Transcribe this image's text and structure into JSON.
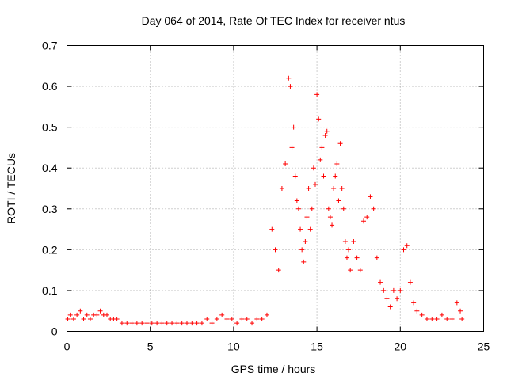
{
  "chart_data": {
    "type": "scatter",
    "title": "Day 064 of 2014, Rate Of TEC Index for receiver ntus",
    "xlabel": "GPS time / hours",
    "ylabel": "ROTI / TECUs",
    "xlim": [
      0,
      25
    ],
    "ylim": [
      0,
      0.7
    ],
    "xticks": [
      0,
      5,
      10,
      15,
      20,
      25
    ],
    "xtick_labels": [
      "0",
      "5",
      "10",
      "15",
      "20",
      "25"
    ],
    "yticks": [
      0,
      0.1,
      0.2,
      0.3,
      0.4,
      0.5,
      0.6,
      0.7
    ],
    "ytick_labels": [
      "0",
      "0.1",
      "0.2",
      "0.3",
      "0.4",
      "0.5",
      "0.6",
      "0.7"
    ],
    "grid": true,
    "marker": "+",
    "color": "#ff0000",
    "series": [
      {
        "name": "ROTI",
        "x": [
          0.05,
          0.2,
          0.4,
          0.6,
          0.8,
          1.0,
          1.2,
          1.4,
          1.6,
          1.8,
          2.0,
          2.2,
          2.4,
          2.6,
          2.8,
          3.0,
          3.3,
          3.6,
          3.9,
          4.2,
          4.5,
          4.8,
          5.1,
          5.4,
          5.7,
          6.0,
          6.3,
          6.6,
          6.9,
          7.2,
          7.5,
          7.8,
          8.1,
          8.4,
          8.7,
          9.0,
          9.3,
          9.6,
          9.9,
          10.2,
          10.5,
          10.8,
          11.1,
          11.4,
          11.7,
          12.0,
          12.3,
          12.5,
          12.7,
          12.9,
          13.1,
          13.3,
          13.4,
          13.5,
          13.6,
          13.7,
          13.8,
          13.9,
          14.0,
          14.1,
          14.2,
          14.3,
          14.4,
          14.5,
          14.6,
          14.7,
          14.8,
          14.9,
          15.0,
          15.1,
          15.2,
          15.3,
          15.4,
          15.5,
          15.6,
          15.7,
          15.8,
          15.9,
          16.0,
          16.1,
          16.2,
          16.3,
          16.4,
          16.5,
          16.6,
          16.7,
          16.8,
          16.9,
          17.0,
          17.2,
          17.4,
          17.6,
          17.8,
          18.0,
          18.2,
          18.4,
          18.6,
          18.8,
          19.0,
          19.2,
          19.4,
          19.6,
          19.8,
          20.0,
          20.2,
          20.4,
          20.6,
          20.8,
          21.0,
          21.3,
          21.6,
          21.9,
          22.2,
          22.5,
          22.8,
          23.1,
          23.4,
          23.6,
          23.7
        ],
        "y": [
          0.03,
          0.04,
          0.03,
          0.04,
          0.05,
          0.03,
          0.04,
          0.03,
          0.04,
          0.04,
          0.05,
          0.04,
          0.04,
          0.03,
          0.03,
          0.03,
          0.02,
          0.02,
          0.02,
          0.02,
          0.02,
          0.02,
          0.02,
          0.02,
          0.02,
          0.02,
          0.02,
          0.02,
          0.02,
          0.02,
          0.02,
          0.02,
          0.02,
          0.03,
          0.02,
          0.03,
          0.04,
          0.03,
          0.03,
          0.02,
          0.03,
          0.03,
          0.02,
          0.03,
          0.03,
          0.04,
          0.25,
          0.2,
          0.15,
          0.35,
          0.41,
          0.62,
          0.6,
          0.45,
          0.5,
          0.38,
          0.32,
          0.3,
          0.25,
          0.2,
          0.17,
          0.22,
          0.28,
          0.35,
          0.25,
          0.3,
          0.4,
          0.36,
          0.58,
          0.52,
          0.42,
          0.45,
          0.38,
          0.48,
          0.49,
          0.3,
          0.28,
          0.26,
          0.35,
          0.38,
          0.41,
          0.32,
          0.46,
          0.35,
          0.3,
          0.22,
          0.18,
          0.2,
          0.15,
          0.22,
          0.18,
          0.15,
          0.27,
          0.28,
          0.33,
          0.3,
          0.18,
          0.12,
          0.1,
          0.08,
          0.06,
          0.1,
          0.08,
          0.1,
          0.2,
          0.21,
          0.12,
          0.07,
          0.05,
          0.04,
          0.03,
          0.03,
          0.03,
          0.04,
          0.03,
          0.03,
          0.07,
          0.05,
          0.03
        ]
      }
    ]
  }
}
